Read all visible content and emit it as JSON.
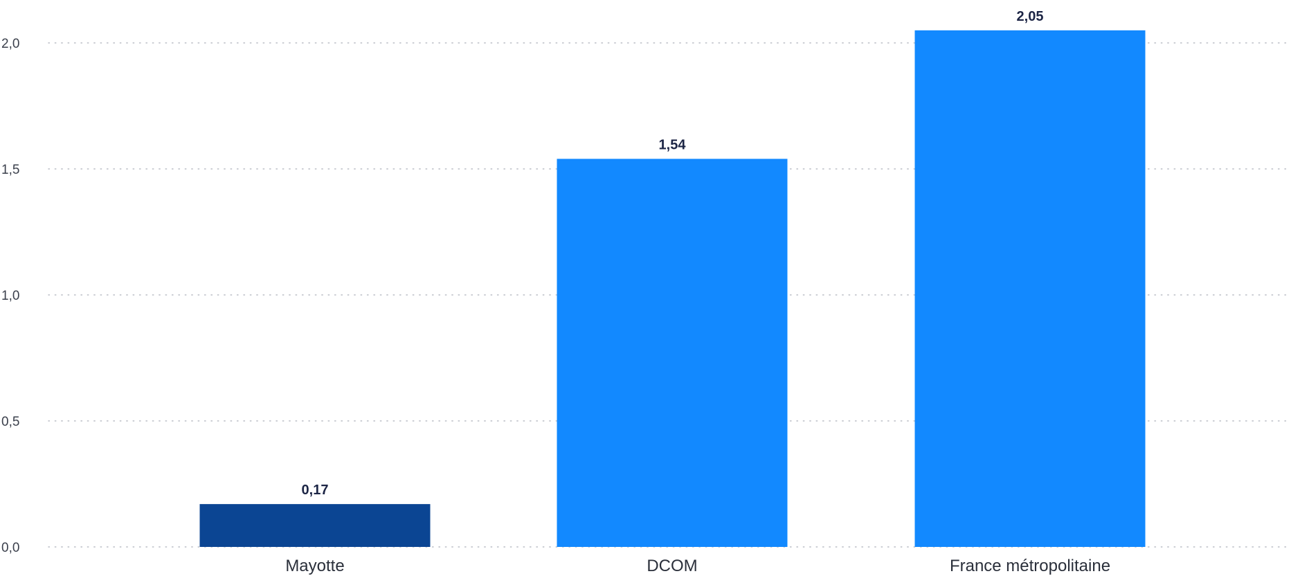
{
  "chart_data": {
    "type": "bar",
    "categories": [
      "Mayotte",
      "DCOM",
      "France métropolitaine"
    ],
    "values": [
      0.17,
      1.54,
      2.05
    ],
    "value_labels": [
      "0,17",
      "1,54",
      "2,05"
    ],
    "bar_colors": [
      "#0b4593",
      "#1289ff",
      "#1289ff"
    ],
    "y_ticks": [
      0,
      0.5,
      1.0,
      1.5,
      2.0
    ],
    "y_tick_labels": [
      "0,0",
      "0,5",
      "1,0",
      "1,5",
      "2,0"
    ],
    "ylim": [
      0,
      2.0
    ],
    "grid": true,
    "grid_style": "dotted",
    "title": "",
    "xlabel": "",
    "ylabel": ""
  }
}
